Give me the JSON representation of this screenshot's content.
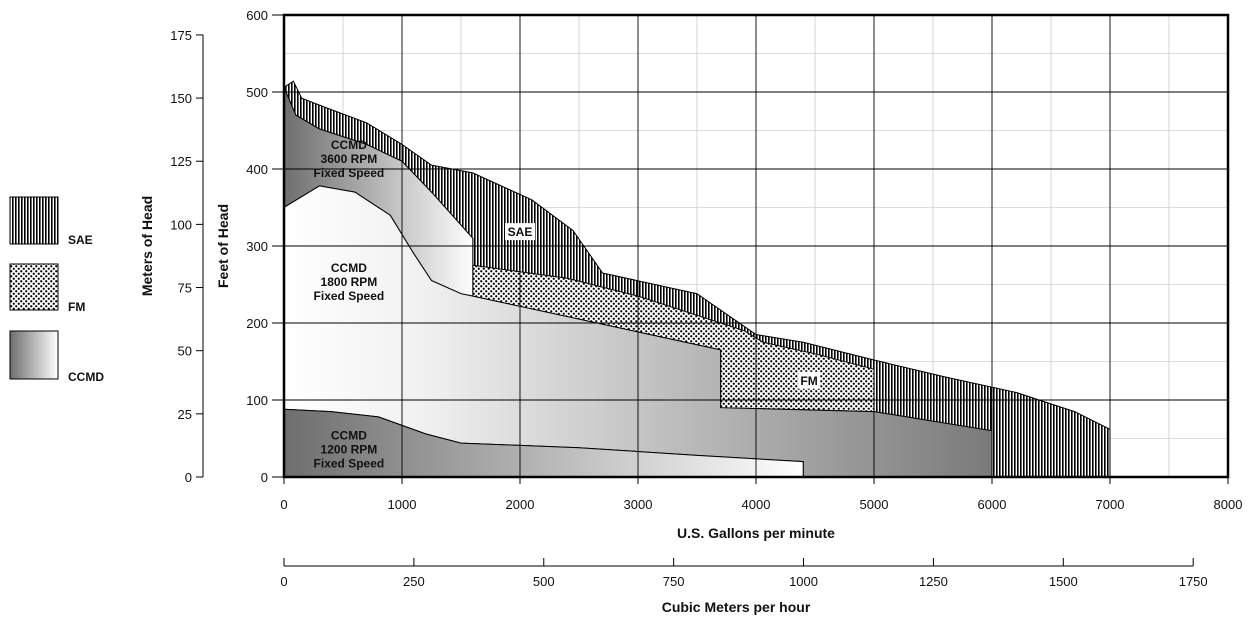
{
  "chart_data": {
    "type": "area",
    "title": "",
    "x_label": "U.S. Gallons per minute",
    "x_range": [
      0,
      8000
    ],
    "x_ticks": [
      0,
      1000,
      2000,
      3000,
      4000,
      5000,
      6000,
      7000,
      8000
    ],
    "y_label": "Feet of Head",
    "y_range": [
      0,
      600
    ],
    "y_ticks": [
      0,
      100,
      200,
      300,
      400,
      500,
      600
    ],
    "secondary_y_label": "Meters of Head",
    "secondary_y_ticks": [
      0,
      25,
      50,
      75,
      100,
      125,
      150,
      175
    ],
    "secondary_x_label": "Cubic Meters per hour",
    "secondary_x_ticks": [
      0,
      250,
      500,
      750,
      1000,
      1250,
      1500,
      1750
    ],
    "grid": true,
    "legend_position": "left",
    "legend": [
      {
        "label": "SAE",
        "pattern": "vertical-stripes"
      },
      {
        "label": "FM",
        "pattern": "checker"
      },
      {
        "label": "CCMD",
        "pattern": "gradient"
      }
    ],
    "regions": [
      {
        "name": "SAE",
        "label": "SAE",
        "fill": "stripes",
        "boundary": [
          [
            0,
            506
          ],
          [
            80,
            514
          ],
          [
            150,
            492
          ],
          [
            350,
            480
          ],
          [
            700,
            460
          ],
          [
            1000,
            432
          ],
          [
            1250,
            405
          ],
          [
            1600,
            395
          ],
          [
            2100,
            360
          ],
          [
            2450,
            320
          ],
          [
            2700,
            265
          ],
          [
            3500,
            238
          ],
          [
            4000,
            185
          ],
          [
            4400,
            175
          ],
          [
            5000,
            152
          ],
          [
            5600,
            130
          ],
          [
            6200,
            110
          ],
          [
            6700,
            85
          ],
          [
            7000,
            62
          ],
          [
            7000,
            0
          ],
          [
            6000,
            0
          ],
          [
            6000,
            60
          ],
          [
            5000,
            85
          ],
          [
            3700,
            90
          ],
          [
            1600,
            270
          ],
          [
            1600,
            310
          ],
          [
            1250,
            370
          ],
          [
            1000,
            410
          ],
          [
            700,
            432
          ],
          [
            300,
            452
          ],
          [
            100,
            470
          ],
          [
            0,
            506
          ]
        ]
      },
      {
        "name": "FM",
        "label": "FM",
        "fill": "checker",
        "boundary": [
          [
            1600,
            275
          ],
          [
            2400,
            258
          ],
          [
            3000,
            235
          ],
          [
            3500,
            210
          ],
          [
            3900,
            190
          ],
          [
            4060,
            175
          ],
          [
            4500,
            160
          ],
          [
            5000,
            140
          ],
          [
            5000,
            85
          ],
          [
            4500,
            87
          ],
          [
            3700,
            90
          ],
          [
            3700,
            165
          ],
          [
            1600,
            235
          ]
        ]
      },
      {
        "name": "CCMD 3600 RPM",
        "label": "CCMD\n3600 RPM\nFixed Speed",
        "fill": "gradient",
        "boundary": [
          [
            0,
            506
          ],
          [
            100,
            470
          ],
          [
            300,
            452
          ],
          [
            700,
            432
          ],
          [
            1000,
            410
          ],
          [
            1250,
            370
          ],
          [
            1600,
            310
          ],
          [
            1600,
            235
          ],
          [
            1500,
            238
          ],
          [
            1250,
            255
          ],
          [
            1100,
            290
          ],
          [
            900,
            340
          ],
          [
            600,
            370
          ],
          [
            300,
            378
          ],
          [
            0,
            350
          ]
        ]
      },
      {
        "name": "CCMD 1800 RPM",
        "label": "CCMD\n1800 RPM\nFixed Speed",
        "fill": "gradient",
        "boundary": [
          [
            0,
            350
          ],
          [
            300,
            378
          ],
          [
            600,
            370
          ],
          [
            900,
            340
          ],
          [
            1100,
            290
          ],
          [
            1250,
            255
          ],
          [
            1500,
            238
          ],
          [
            1600,
            235
          ],
          [
            3700,
            165
          ],
          [
            3700,
            90
          ],
          [
            5000,
            85
          ],
          [
            6000,
            60
          ],
          [
            6000,
            0
          ],
          [
            4400,
            0
          ],
          [
            4400,
            20
          ],
          [
            3500,
            28
          ],
          [
            2500,
            38
          ],
          [
            1500,
            44
          ],
          [
            1200,
            56
          ],
          [
            800,
            78
          ],
          [
            400,
            85
          ],
          [
            0,
            88
          ]
        ]
      },
      {
        "name": "CCMD 1200 RPM",
        "label": "CCMD\n1200 RPM\nFixed Speed",
        "fill": "gradient",
        "boundary": [
          [
            0,
            88
          ],
          [
            400,
            85
          ],
          [
            800,
            78
          ],
          [
            1200,
            56
          ],
          [
            1500,
            44
          ],
          [
            2500,
            38
          ],
          [
            3500,
            28
          ],
          [
            4400,
            20
          ],
          [
            4400,
            0
          ],
          [
            0,
            0
          ]
        ]
      }
    ]
  }
}
